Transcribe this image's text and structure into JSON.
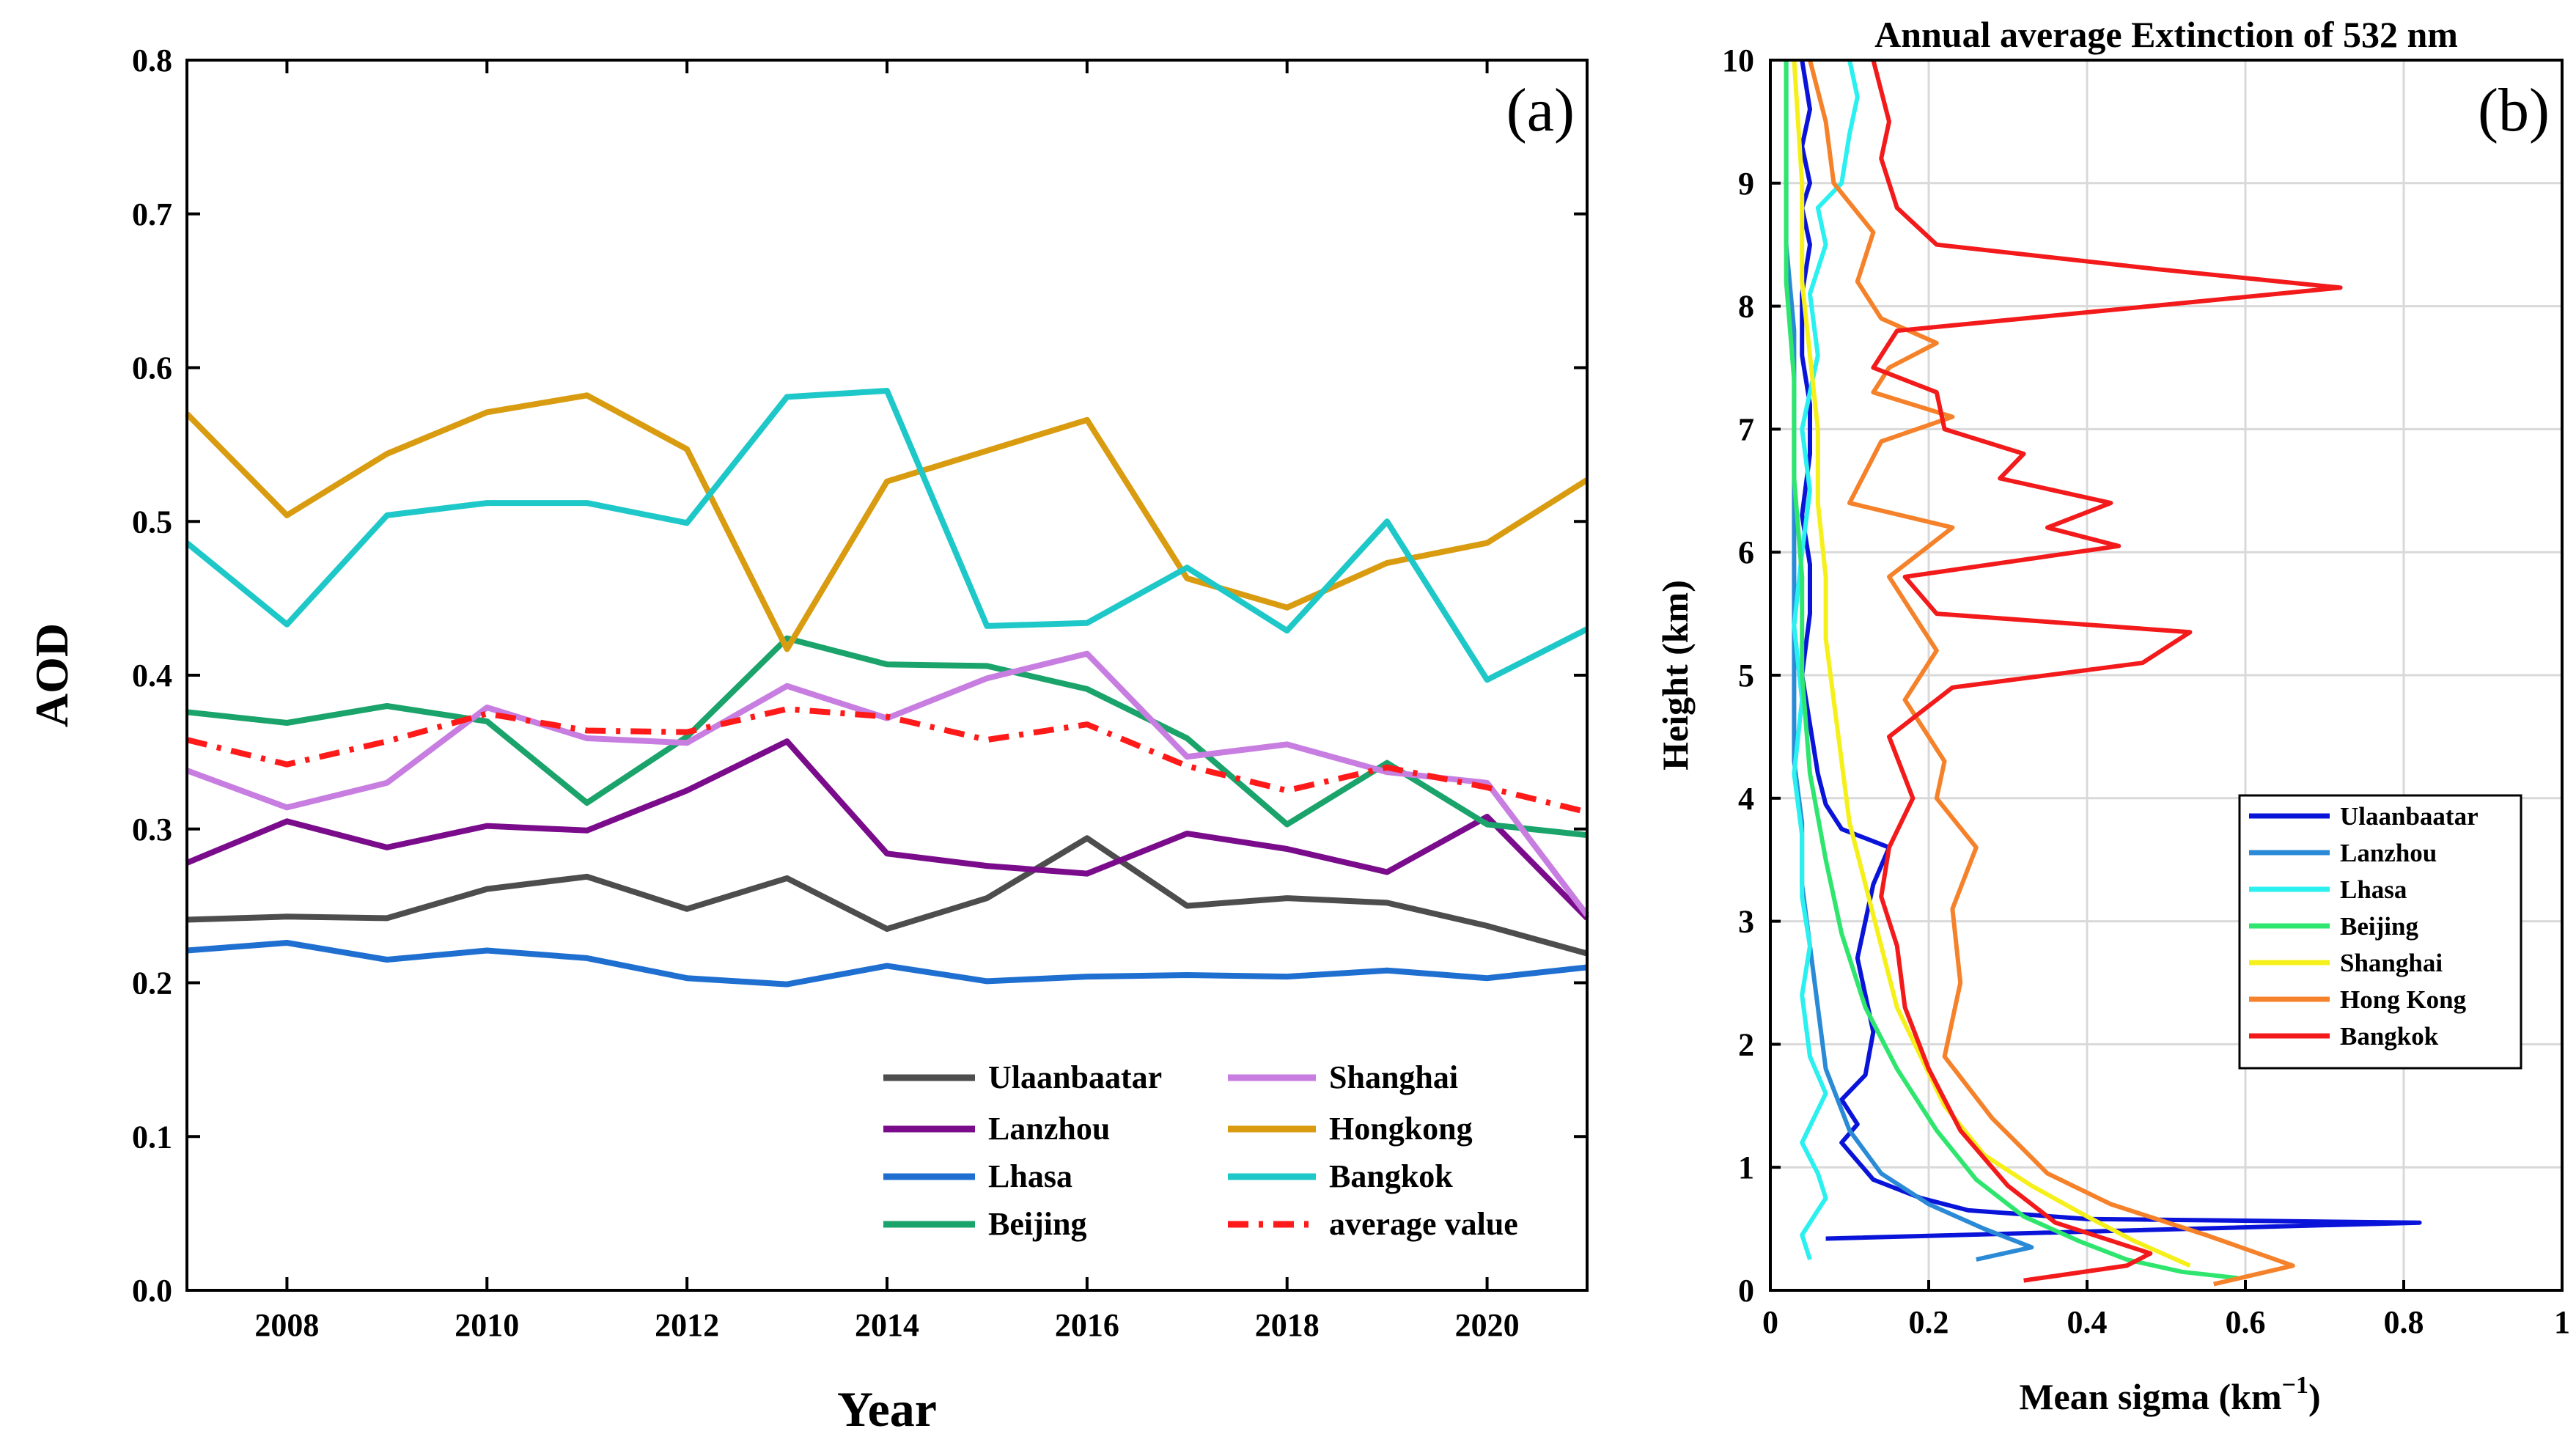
{
  "chart_data": [
    {
      "type": "line",
      "panel_label": "(a)",
      "xlabel": "Year",
      "ylabel": "AOD",
      "xlim": [
        2007,
        2021
      ],
      "ylim": [
        0.0,
        0.8
      ],
      "xticks": [
        2008,
        2010,
        2012,
        2014,
        2016,
        2018,
        2020
      ],
      "xtick_labels": [
        "2008",
        "2010",
        "2012",
        "2014",
        "2016",
        "2018",
        "2020"
      ],
      "yticks": [
        0.0,
        0.1,
        0.2,
        0.3,
        0.4,
        0.5,
        0.6,
        0.7,
        0.8
      ],
      "ytick_labels": [
        "0.0",
        "0.1",
        "0.2",
        "0.3",
        "0.4",
        "0.5",
        "0.6",
        "0.7",
        "0.8"
      ],
      "grid": false,
      "legend_position": "bottom-right",
      "x": [
        2007,
        2008,
        2009,
        2010,
        2011,
        2012,
        2013,
        2014,
        2015,
        2016,
        2017,
        2018,
        2019,
        2020,
        2021
      ],
      "series": [
        {
          "name": "Ulaanbaatar",
          "color": "#4d4d4d",
          "dash": "solid",
          "values": [
            0.241,
            0.243,
            0.242,
            0.261,
            0.269,
            0.248,
            0.268,
            0.235,
            0.255,
            0.294,
            0.25,
            0.255,
            0.252,
            0.237,
            0.219
          ]
        },
        {
          "name": "Lanzhou",
          "color": "#7a0c8c",
          "dash": "solid",
          "values": [
            0.278,
            0.305,
            0.288,
            0.302,
            0.299,
            0.325,
            0.357,
            0.284,
            0.276,
            0.271,
            0.297,
            0.287,
            0.272,
            0.308,
            0.242
          ]
        },
        {
          "name": "Lhasa",
          "color": "#1f6fd1",
          "dash": "solid",
          "values": [
            0.221,
            0.226,
            0.215,
            0.221,
            0.216,
            0.203,
            0.199,
            0.211,
            0.201,
            0.204,
            0.205,
            0.204,
            0.208,
            0.203,
            0.21
          ]
        },
        {
          "name": "Beijing",
          "color": "#1aa36a",
          "dash": "solid",
          "values": [
            0.376,
            0.369,
            0.38,
            0.37,
            0.317,
            0.36,
            0.424,
            0.407,
            0.406,
            0.391,
            0.359,
            0.303,
            0.343,
            0.303,
            0.296
          ]
        },
        {
          "name": "Shanghai",
          "color": "#c77ee0",
          "dash": "solid",
          "values": [
            0.338,
            0.314,
            0.33,
            0.379,
            0.359,
            0.356,
            0.393,
            0.372,
            0.398,
            0.414,
            0.347,
            0.355,
            0.337,
            0.33,
            0.244
          ]
        },
        {
          "name": "Hongkong",
          "color": "#d99c10",
          "dash": "solid",
          "values": [
            0.57,
            0.504,
            0.544,
            0.571,
            0.582,
            0.547,
            0.417,
            0.526,
            0.546,
            0.566,
            0.463,
            0.444,
            0.473,
            0.486,
            0.527
          ]
        },
        {
          "name": "Bangkok",
          "color": "#1ec8c8",
          "dash": "solid",
          "values": [
            0.486,
            0.433,
            0.504,
            0.512,
            0.512,
            0.499,
            0.581,
            0.585,
            0.432,
            0.434,
            0.47,
            0.429,
            0.5,
            0.397,
            0.43
          ]
        },
        {
          "name": "average value",
          "color": "#ff1a1a",
          "dash": "dashdot",
          "values": [
            0.358,
            0.342,
            0.357,
            0.375,
            0.364,
            0.363,
            0.378,
            0.373,
            0.358,
            0.368,
            0.341,
            0.325,
            0.34,
            0.327,
            0.311
          ]
        }
      ]
    },
    {
      "type": "line",
      "panel_label": "(b)",
      "title": "Annual average Extinction of 532 nm",
      "xlabel": "Mean sigma (km",
      "xlabel_sup": "−1",
      "xlabel_end": ")",
      "ylabel": "Height (km)",
      "xlim": [
        0,
        1
      ],
      "ylim": [
        0,
        10
      ],
      "xticks": [
        0,
        0.2,
        0.4,
        0.6,
        0.8,
        1
      ],
      "xtick_labels": [
        "0",
        "0.2",
        "0.4",
        "0.6",
        "0.8",
        "1"
      ],
      "yticks": [
        0,
        1,
        2,
        3,
        4,
        5,
        6,
        7,
        8,
        9,
        10
      ],
      "ytick_labels": [
        "0",
        "1",
        "2",
        "3",
        "4",
        "5",
        "6",
        "7",
        "8",
        "9",
        "10"
      ],
      "grid": true,
      "legend_position": "right",
      "series": [
        {
          "name": "Ulaanbaatar",
          "color": "#0a14d9",
          "points": [
            [
              0.07,
              0.42
            ],
            [
              0.82,
              0.55
            ],
            [
              0.4,
              0.58
            ],
            [
              0.25,
              0.65
            ],
            [
              0.19,
              0.75
            ],
            [
              0.13,
              0.9
            ],
            [
              0.11,
              1.05
            ],
            [
              0.09,
              1.2
            ],
            [
              0.11,
              1.35
            ],
            [
              0.09,
              1.55
            ],
            [
              0.12,
              1.75
            ],
            [
              0.13,
              2.1
            ],
            [
              0.12,
              2.4
            ],
            [
              0.11,
              2.7
            ],
            [
              0.12,
              3.0
            ],
            [
              0.13,
              3.3
            ],
            [
              0.15,
              3.6
            ],
            [
              0.09,
              3.75
            ],
            [
              0.07,
              3.95
            ],
            [
              0.06,
              4.2
            ],
            [
              0.05,
              4.6
            ],
            [
              0.04,
              5.0
            ],
            [
              0.05,
              5.5
            ],
            [
              0.05,
              5.9
            ],
            [
              0.04,
              6.3
            ],
            [
              0.05,
              6.8
            ],
            [
              0.05,
              7.2
            ],
            [
              0.04,
              7.6
            ],
            [
              0.04,
              8.1
            ],
            [
              0.05,
              8.5
            ],
            [
              0.04,
              8.8
            ],
            [
              0.05,
              9.0
            ],
            [
              0.04,
              9.3
            ],
            [
              0.05,
              9.6
            ],
            [
              0.04,
              10.0
            ]
          ]
        },
        {
          "name": "Lanzhou",
          "color": "#2b8ad6",
          "points": [
            [
              0.26,
              0.25
            ],
            [
              0.33,
              0.35
            ],
            [
              0.27,
              0.5
            ],
            [
              0.2,
              0.7
            ],
            [
              0.14,
              0.95
            ],
            [
              0.1,
              1.3
            ],
            [
              0.07,
              1.8
            ],
            [
              0.06,
              2.3
            ],
            [
              0.05,
              2.8
            ],
            [
              0.04,
              3.3
            ],
            [
              0.04,
              3.8
            ],
            [
              0.03,
              4.3
            ],
            [
              0.03,
              5.0
            ],
            [
              0.03,
              5.7
            ],
            [
              0.03,
              6.4
            ],
            [
              0.03,
              7.1
            ],
            [
              0.03,
              7.8
            ],
            [
              0.02,
              8.5
            ],
            [
              0.02,
              9.2
            ],
            [
              0.02,
              10.0
            ]
          ]
        },
        {
          "name": "Lhasa",
          "color": "#2af0f0",
          "points": [
            [
              0.05,
              0.25
            ],
            [
              0.04,
              0.45
            ],
            [
              0.07,
              0.75
            ],
            [
              0.06,
              0.95
            ],
            [
              0.04,
              1.2
            ],
            [
              0.07,
              1.6
            ],
            [
              0.05,
              1.9
            ],
            [
              0.04,
              2.4
            ],
            [
              0.05,
              2.8
            ],
            [
              0.04,
              3.2
            ],
            [
              0.04,
              3.7
            ],
            [
              0.03,
              4.2
            ],
            [
              0.04,
              4.8
            ],
            [
              0.03,
              5.4
            ],
            [
              0.04,
              6.0
            ],
            [
              0.05,
              6.5
            ],
            [
              0.04,
              7.0
            ],
            [
              0.06,
              7.6
            ],
            [
              0.05,
              8.1
            ],
            [
              0.07,
              8.5
            ],
            [
              0.06,
              8.8
            ],
            [
              0.09,
              9.0
            ],
            [
              0.1,
              9.4
            ],
            [
              0.11,
              9.7
            ],
            [
              0.1,
              10.0
            ]
          ]
        },
        {
          "name": "Beijing",
          "color": "#2ee66e",
          "points": [
            [
              0.59,
              0.1
            ],
            [
              0.52,
              0.15
            ],
            [
              0.45,
              0.25
            ],
            [
              0.39,
              0.4
            ],
            [
              0.32,
              0.6
            ],
            [
              0.26,
              0.9
            ],
            [
              0.21,
              1.3
            ],
            [
              0.16,
              1.8
            ],
            [
              0.12,
              2.3
            ],
            [
              0.09,
              2.9
            ],
            [
              0.07,
              3.5
            ],
            [
              0.05,
              4.2
            ],
            [
              0.04,
              5.0
            ],
            [
              0.04,
              5.8
            ],
            [
              0.03,
              6.6
            ],
            [
              0.03,
              7.4
            ],
            [
              0.02,
              8.2
            ],
            [
              0.02,
              9.0
            ],
            [
              0.02,
              10.0
            ]
          ]
        },
        {
          "name": "Shanghai",
          "color": "#f5f01a",
          "points": [
            [
              0.53,
              0.2
            ],
            [
              0.46,
              0.4
            ],
            [
              0.4,
              0.6
            ],
            [
              0.33,
              0.85
            ],
            [
              0.27,
              1.1
            ],
            [
              0.22,
              1.5
            ],
            [
              0.19,
              1.9
            ],
            [
              0.16,
              2.3
            ],
            [
              0.14,
              2.8
            ],
            [
              0.12,
              3.3
            ],
            [
              0.1,
              3.8
            ],
            [
              0.09,
              4.3
            ],
            [
              0.08,
              4.8
            ],
            [
              0.07,
              5.3
            ],
            [
              0.07,
              5.8
            ],
            [
              0.06,
              6.4
            ],
            [
              0.06,
              7.0
            ],
            [
              0.05,
              7.6
            ],
            [
              0.04,
              8.2
            ],
            [
              0.04,
              9.0
            ],
            [
              0.03,
              10.0
            ]
          ]
        },
        {
          "name": "Hong Kong",
          "color": "#f5822a",
          "points": [
            [
              0.56,
              0.05
            ],
            [
              0.66,
              0.2
            ],
            [
              0.55,
              0.45
            ],
            [
              0.43,
              0.7
            ],
            [
              0.35,
              0.95
            ],
            [
              0.28,
              1.4
            ],
            [
              0.22,
              1.9
            ],
            [
              0.24,
              2.5
            ],
            [
              0.23,
              3.1
            ],
            [
              0.26,
              3.6
            ],
            [
              0.21,
              4.0
            ],
            [
              0.22,
              4.3
            ],
            [
              0.17,
              4.8
            ],
            [
              0.21,
              5.2
            ],
            [
              0.18,
              5.5
            ],
            [
              0.15,
              5.8
            ],
            [
              0.23,
              6.2
            ],
            [
              0.1,
              6.4
            ],
            [
              0.14,
              6.9
            ],
            [
              0.23,
              7.1
            ],
            [
              0.13,
              7.3
            ],
            [
              0.15,
              7.5
            ],
            [
              0.21,
              7.7
            ],
            [
              0.14,
              7.9
            ],
            [
              0.11,
              8.2
            ],
            [
              0.13,
              8.6
            ],
            [
              0.08,
              9.0
            ],
            [
              0.07,
              9.5
            ],
            [
              0.05,
              10.0
            ]
          ]
        },
        {
          "name": "Bangkok",
          "color": "#f21a1a",
          "points": [
            [
              0.32,
              0.08
            ],
            [
              0.45,
              0.2
            ],
            [
              0.48,
              0.3
            ],
            [
              0.36,
              0.55
            ],
            [
              0.3,
              0.85
            ],
            [
              0.24,
              1.3
            ],
            [
              0.2,
              1.8
            ],
            [
              0.17,
              2.3
            ],
            [
              0.16,
              2.8
            ],
            [
              0.14,
              3.2
            ],
            [
              0.15,
              3.6
            ],
            [
              0.18,
              4.0
            ],
            [
              0.15,
              4.5
            ],
            [
              0.23,
              4.9
            ],
            [
              0.47,
              5.1
            ],
            [
              0.53,
              5.35
            ],
            [
              0.21,
              5.5
            ],
            [
              0.17,
              5.8
            ],
            [
              0.44,
              6.05
            ],
            [
              0.35,
              6.2
            ],
            [
              0.43,
              6.4
            ],
            [
              0.29,
              6.6
            ],
            [
              0.32,
              6.8
            ],
            [
              0.22,
              7.0
            ],
            [
              0.21,
              7.3
            ],
            [
              0.13,
              7.5
            ],
            [
              0.16,
              7.8
            ],
            [
              0.72,
              8.15
            ],
            [
              0.49,
              8.3
            ],
            [
              0.21,
              8.5
            ],
            [
              0.16,
              8.8
            ],
            [
              0.14,
              9.2
            ],
            [
              0.15,
              9.5
            ],
            [
              0.13,
              10.0
            ]
          ]
        }
      ]
    }
  ]
}
